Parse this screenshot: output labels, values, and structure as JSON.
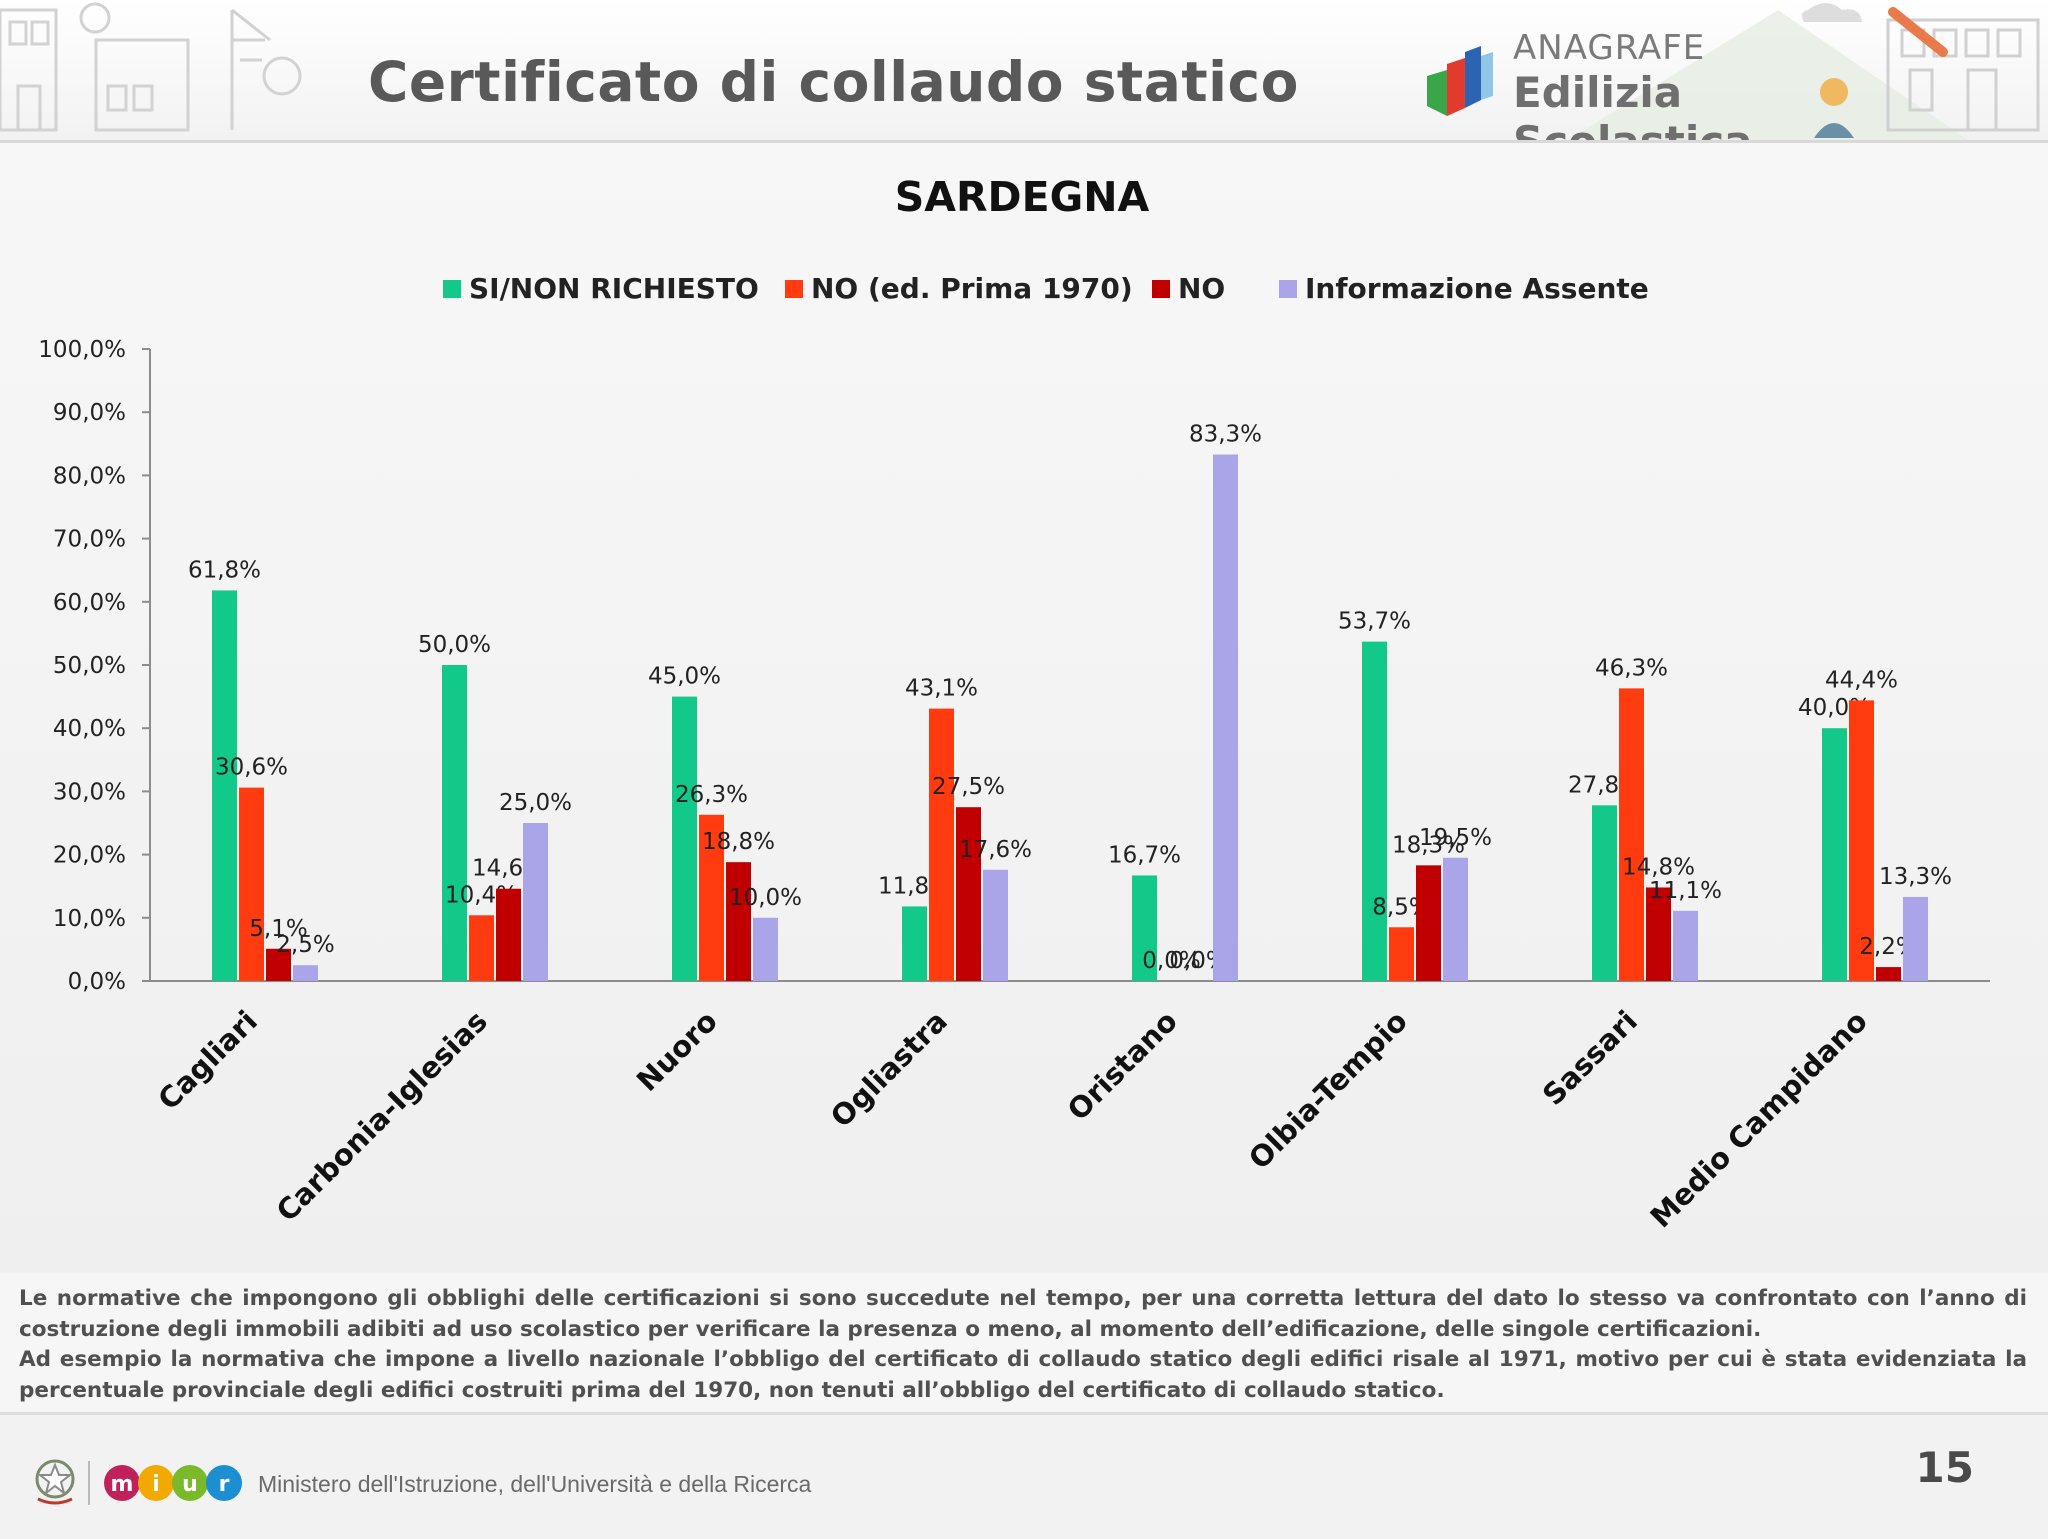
{
  "header": {
    "title": "Certificato di collaudo statico",
    "brand_top": "ANAGRAFE",
    "brand_bottom": "Edilizia Scolastica"
  },
  "chart_data": {
    "type": "bar",
    "title": "SARDEGNA",
    "categories": [
      "Cagliari",
      "Carbonia-Iglesias",
      "Nuoro",
      "Ogliastra",
      "Oristano",
      "Olbia-Tempio",
      "Sassari",
      "Medio Campidano"
    ],
    "series": [
      {
        "name": "SI/NON RICHIESTO",
        "color": "#12c989",
        "values": [
          61.8,
          50.0,
          45.0,
          11.8,
          16.7,
          53.7,
          27.8,
          40.0
        ],
        "labels": [
          "61,8%",
          "50,0%",
          "45,0%",
          "11,8%",
          "16,7%",
          "53,7%",
          "27,8%",
          "40,0%"
        ]
      },
      {
        "name": "NO (ed. Prima 1970)",
        "color": "#ff3b0f",
        "values": [
          30.6,
          10.4,
          26.3,
          43.1,
          0.0,
          8.5,
          46.3,
          44.4
        ],
        "labels": [
          "30,6%",
          "10,4%",
          "26,3%",
          "43,1%",
          "0,0%",
          "8,5%",
          "46,3%",
          "44,4%"
        ]
      },
      {
        "name": "NO",
        "color": "#c00000",
        "values": [
          5.1,
          14.6,
          18.8,
          27.5,
          0.0,
          18.3,
          14.8,
          2.2
        ],
        "labels": [
          "5,1%",
          "14,6%",
          "18,8%",
          "27,5%",
          "0,0%",
          "18,3%",
          "14,8%",
          "2,2%"
        ]
      },
      {
        "name": "Informazione Assente",
        "color": "#a9a5e8",
        "values": [
          2.5,
          25.0,
          10.0,
          17.6,
          83.3,
          19.5,
          11.1,
          13.3
        ],
        "labels": [
          "2,5%",
          "25,0%",
          "10,0%",
          "17,6%",
          "83,3%",
          "19,5%",
          "11,1%",
          "13,3%"
        ]
      }
    ],
    "yticks": [
      "0,0%",
      "10,0%",
      "20,0%",
      "30,0%",
      "40,0%",
      "50,0%",
      "60,0%",
      "70,0%",
      "80,0%",
      "90,0%",
      "100,0%"
    ],
    "ylim": [
      0,
      100
    ],
    "grid": false,
    "legend_position": "top"
  },
  "notes": {
    "paragraph1": "Le normative che impongono gli obblighi delle certificazioni si sono succedute nel tempo, per una corretta lettura del dato lo stesso va confrontato con l’anno di costruzione degli immobili adibiti ad uso scolastico per verificare la presenza o meno, al momento dell’edificazione, delle singole certificazioni.",
    "paragraph2": "Ad esempio la normativa che impone a livello nazionale l’obbligo del certificato di collaudo statico degli edifici risale al 1971, motivo per cui è stata evidenziata la percentuale provinciale degli edifici costruiti prima del 1970, non tenuti all’obbligo del certificato di collaudo statico."
  },
  "footer": {
    "ministry": "Ministero dell'Istruzione, dell'Università e della Ricerca",
    "page_number": "15",
    "logo_letters": [
      "m",
      "i",
      "u",
      "r"
    ],
    "logo_colors": [
      "#c0215a",
      "#f2a900",
      "#7ab929",
      "#1b8fd1"
    ]
  }
}
